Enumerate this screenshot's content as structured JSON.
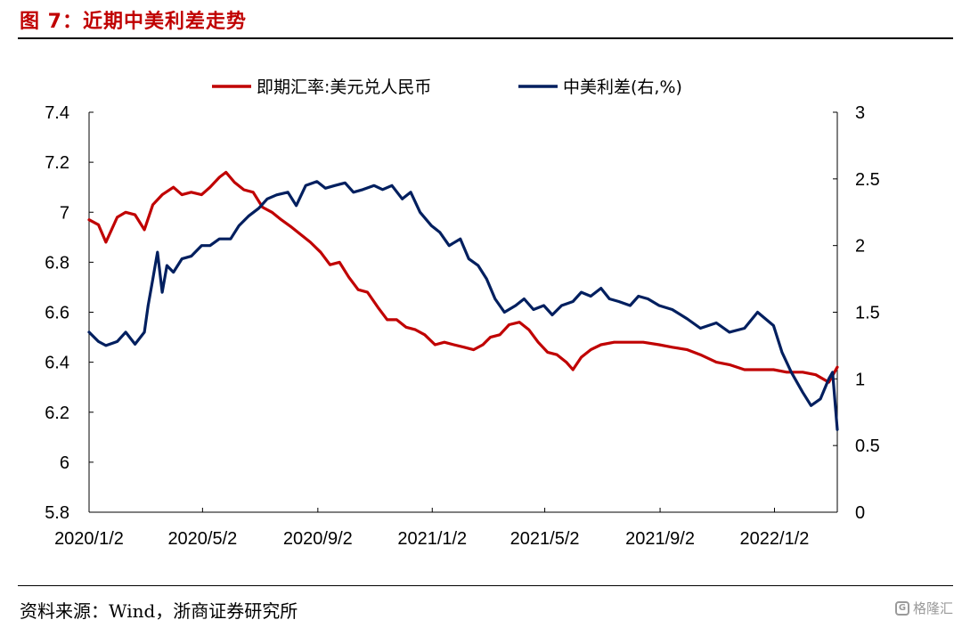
{
  "header": {
    "title": "图 7：近期中美利差走势"
  },
  "footer": {
    "source": "资料来源：Wind，浙商证券研究所",
    "watermark": "格隆汇"
  },
  "chart_data": {
    "type": "line",
    "x_tick_labels": [
      "2020/1/2",
      "2020/5/2",
      "2020/9/2",
      "2021/1/2",
      "2021/5/2",
      "2021/9/2",
      "2022/1/2"
    ],
    "x_range": [
      "2020-01-02",
      "2022-03-10"
    ],
    "y_left": {
      "ticks": [
        "7.4",
        "7.2",
        "7",
        "6.8",
        "6.6",
        "6.4",
        "6.2",
        "6",
        "5.8"
      ],
      "lim": [
        5.8,
        7.4
      ]
    },
    "y_right": {
      "ticks": [
        "3",
        "2.5",
        "2",
        "1.5",
        "1",
        "0.5",
        "0"
      ],
      "lim": [
        0,
        3
      ]
    },
    "legend_position": "top",
    "grid": false,
    "series": [
      {
        "name": "即期汇率:美元兑人民币",
        "axis": "left",
        "color": "#c00000",
        "x": [
          "2020-01-02",
          "2020-01-12",
          "2020-01-20",
          "2020-02-01",
          "2020-02-10",
          "2020-02-20",
          "2020-03-01",
          "2020-03-10",
          "2020-03-20",
          "2020-04-01",
          "2020-04-10",
          "2020-04-20",
          "2020-05-01",
          "2020-05-10",
          "2020-05-20",
          "2020-05-27",
          "2020-06-05",
          "2020-06-15",
          "2020-06-25",
          "2020-07-05",
          "2020-07-15",
          "2020-07-25",
          "2020-08-05",
          "2020-08-15",
          "2020-08-25",
          "2020-09-05",
          "2020-09-15",
          "2020-09-25",
          "2020-10-05",
          "2020-10-15",
          "2020-10-25",
          "2020-11-05",
          "2020-11-15",
          "2020-11-25",
          "2020-12-05",
          "2020-12-15",
          "2020-12-25",
          "2021-01-05",
          "2021-01-15",
          "2021-01-25",
          "2021-02-05",
          "2021-02-15",
          "2021-02-25",
          "2021-03-05",
          "2021-03-15",
          "2021-03-25",
          "2021-04-05",
          "2021-04-15",
          "2021-04-25",
          "2021-05-05",
          "2021-05-15",
          "2021-05-25",
          "2021-06-01",
          "2021-06-10",
          "2021-06-20",
          "2021-07-01",
          "2021-07-15",
          "2021-08-01",
          "2021-08-15",
          "2021-09-01",
          "2021-09-15",
          "2021-10-01",
          "2021-10-15",
          "2021-11-01",
          "2021-11-15",
          "2021-12-01",
          "2021-12-15",
          "2022-01-01",
          "2022-01-15",
          "2022-02-01",
          "2022-02-15",
          "2022-03-01",
          "2022-03-10"
        ],
        "y": [
          6.97,
          6.95,
          6.88,
          6.98,
          7.0,
          6.99,
          6.93,
          7.03,
          7.07,
          7.1,
          7.07,
          7.08,
          7.07,
          7.1,
          7.14,
          7.16,
          7.12,
          7.09,
          7.08,
          7.02,
          7.0,
          6.97,
          6.94,
          6.91,
          6.88,
          6.84,
          6.79,
          6.8,
          6.74,
          6.69,
          6.68,
          6.62,
          6.57,
          6.57,
          6.54,
          6.53,
          6.51,
          6.47,
          6.48,
          6.47,
          6.46,
          6.45,
          6.47,
          6.5,
          6.51,
          6.55,
          6.56,
          6.53,
          6.48,
          6.44,
          6.43,
          6.4,
          6.37,
          6.42,
          6.45,
          6.47,
          6.48,
          6.48,
          6.48,
          6.47,
          6.46,
          6.45,
          6.43,
          6.4,
          6.39,
          6.37,
          6.37,
          6.37,
          6.36,
          6.36,
          6.35,
          6.32,
          6.38
        ]
      },
      {
        "name": "中美利差(右,%)",
        "axis": "right",
        "color": "#001f5f",
        "x": [
          "2020-01-02",
          "2020-01-12",
          "2020-01-20",
          "2020-02-01",
          "2020-02-10",
          "2020-02-20",
          "2020-03-01",
          "2020-03-05",
          "2020-03-10",
          "2020-03-15",
          "2020-03-20",
          "2020-03-25",
          "2020-04-01",
          "2020-04-10",
          "2020-04-20",
          "2020-05-01",
          "2020-05-10",
          "2020-05-20",
          "2020-06-01",
          "2020-06-10",
          "2020-06-20",
          "2020-07-01",
          "2020-07-10",
          "2020-07-20",
          "2020-08-01",
          "2020-08-10",
          "2020-08-20",
          "2020-09-01",
          "2020-09-10",
          "2020-09-20",
          "2020-10-01",
          "2020-10-10",
          "2020-10-20",
          "2020-11-01",
          "2020-11-10",
          "2020-11-20",
          "2020-12-01",
          "2020-12-10",
          "2020-12-20",
          "2021-01-01",
          "2021-01-10",
          "2021-01-20",
          "2021-02-01",
          "2021-02-10",
          "2021-02-20",
          "2021-03-01",
          "2021-03-10",
          "2021-03-20",
          "2021-04-01",
          "2021-04-10",
          "2021-04-20",
          "2021-05-01",
          "2021-05-10",
          "2021-05-20",
          "2021-06-01",
          "2021-06-10",
          "2021-06-20",
          "2021-07-01",
          "2021-07-10",
          "2021-07-20",
          "2021-08-01",
          "2021-08-10",
          "2021-08-20",
          "2021-09-01",
          "2021-09-15",
          "2021-10-01",
          "2021-10-15",
          "2021-11-01",
          "2021-11-15",
          "2021-12-01",
          "2021-12-15",
          "2022-01-01",
          "2022-01-10",
          "2022-01-20",
          "2022-02-01",
          "2022-02-10",
          "2022-02-20",
          "2022-03-01",
          "2022-03-05",
          "2022-03-10"
        ],
        "y": [
          1.35,
          1.28,
          1.25,
          1.28,
          1.35,
          1.26,
          1.35,
          1.55,
          1.75,
          1.95,
          1.65,
          1.85,
          1.8,
          1.9,
          1.92,
          2.0,
          2.0,
          2.05,
          2.05,
          2.15,
          2.22,
          2.28,
          2.35,
          2.38,
          2.4,
          2.3,
          2.45,
          2.48,
          2.43,
          2.45,
          2.47,
          2.4,
          2.42,
          2.45,
          2.42,
          2.45,
          2.35,
          2.4,
          2.25,
          2.15,
          2.1,
          2.0,
          2.05,
          1.9,
          1.85,
          1.75,
          1.6,
          1.5,
          1.55,
          1.6,
          1.52,
          1.55,
          1.48,
          1.55,
          1.58,
          1.65,
          1.62,
          1.68,
          1.6,
          1.58,
          1.55,
          1.62,
          1.6,
          1.55,
          1.52,
          1.45,
          1.38,
          1.42,
          1.35,
          1.38,
          1.5,
          1.4,
          1.2,
          1.05,
          0.9,
          0.8,
          0.85,
          1.0,
          1.05,
          0.62
        ]
      }
    ]
  }
}
